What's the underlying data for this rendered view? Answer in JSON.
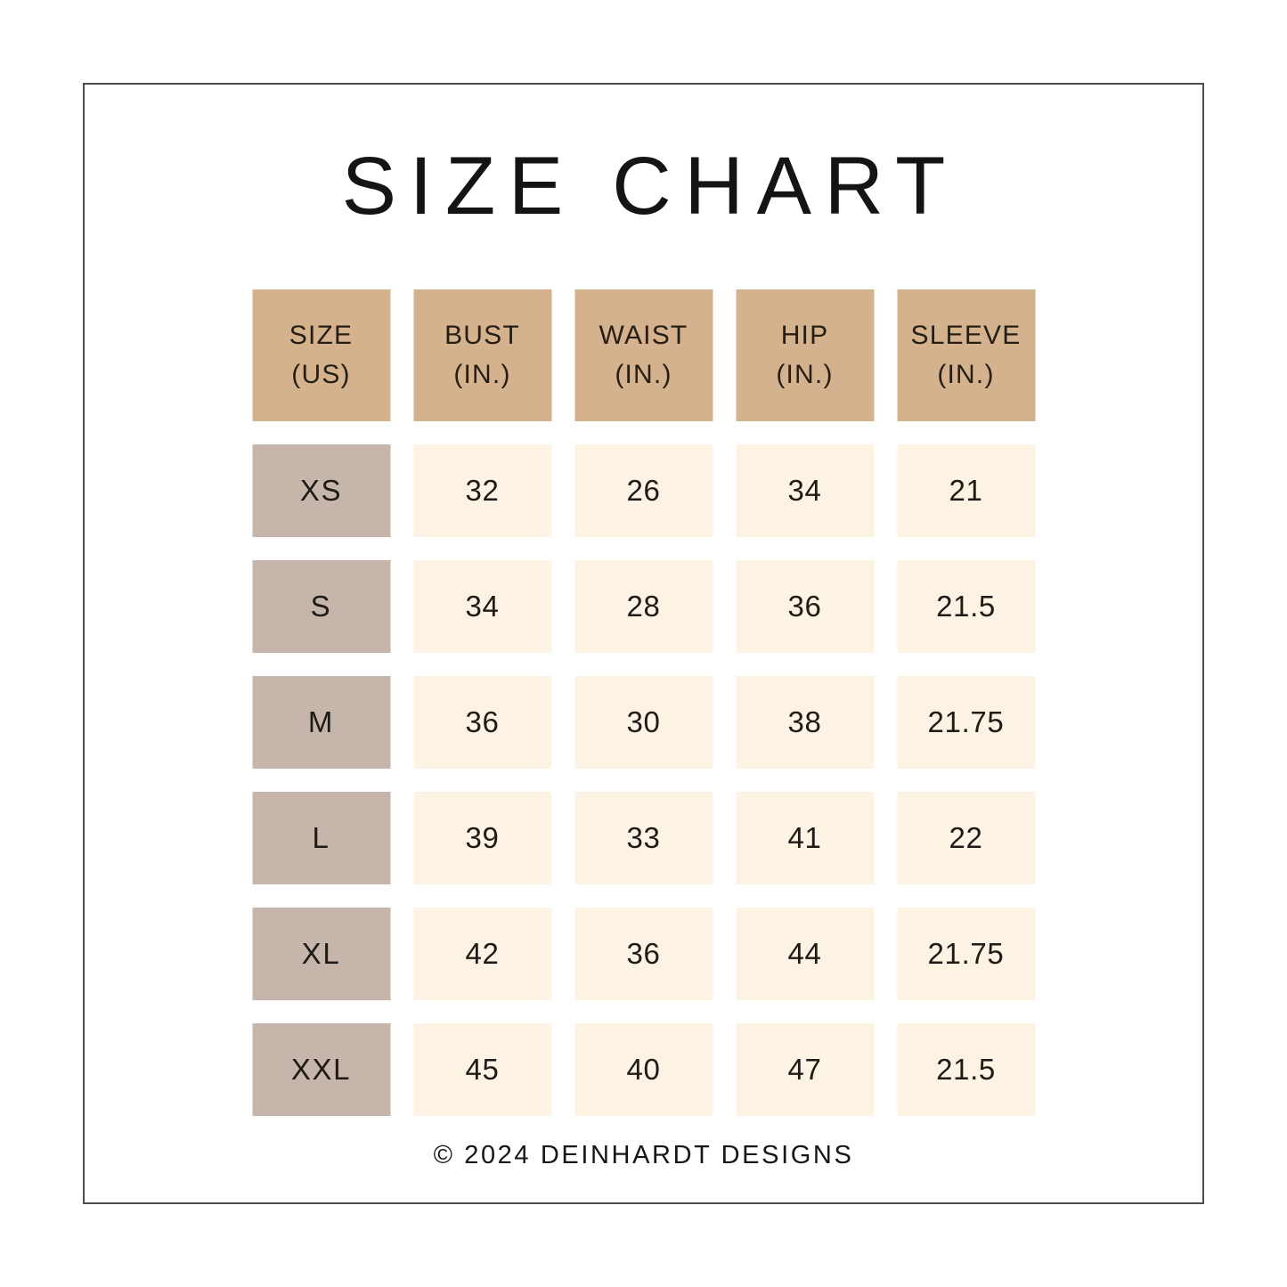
{
  "page": {
    "title": "SIZE CHART",
    "footer": "© 2024 DEINHARDT DESIGNS"
  },
  "colors": {
    "header_bg": "#d4b28e",
    "size_bg": "#c6b5aa",
    "value_bg": "#fcf3e4",
    "text": "#1b1b1b",
    "border": "#4d4d4d",
    "page_bg": "#ffffff"
  },
  "table": {
    "headers": [
      {
        "label": "SIZE",
        "unit": "(US)"
      },
      {
        "label": "BUST",
        "unit": "(IN.)"
      },
      {
        "label": "WAIST",
        "unit": "(IN.)"
      },
      {
        "label": "HIP",
        "unit": "(IN.)"
      },
      {
        "label": "SLEEVE",
        "unit": "(IN.)"
      }
    ],
    "rows": [
      {
        "size": "XS",
        "bust": "32",
        "waist": "26",
        "hip": "34",
        "sleeve": "21"
      },
      {
        "size": "S",
        "bust": "34",
        "waist": "28",
        "hip": "36",
        "sleeve": "21.5"
      },
      {
        "size": "M",
        "bust": "36",
        "waist": "30",
        "hip": "38",
        "sleeve": "21.75"
      },
      {
        "size": "L",
        "bust": "39",
        "waist": "33",
        "hip": "41",
        "sleeve": "22"
      },
      {
        "size": "XL",
        "bust": "42",
        "waist": "36",
        "hip": "44",
        "sleeve": "21.75"
      },
      {
        "size": "XXL",
        "bust": "45",
        "waist": "40",
        "hip": "47",
        "sleeve": "21.5"
      }
    ]
  },
  "chart_data": {
    "type": "table",
    "title": "SIZE CHART",
    "columns": [
      "SIZE (US)",
      "BUST (IN.)",
      "WAIST (IN.)",
      "HIP (IN.)",
      "SLEEVE (IN.)"
    ],
    "rows": [
      [
        "XS",
        32,
        26,
        34,
        21
      ],
      [
        "S",
        34,
        28,
        36,
        21.5
      ],
      [
        "M",
        36,
        30,
        38,
        21.75
      ],
      [
        "L",
        39,
        33,
        41,
        22
      ],
      [
        "XL",
        42,
        36,
        44,
        21.75
      ],
      [
        "XXL",
        45,
        40,
        47,
        21.5
      ]
    ]
  }
}
